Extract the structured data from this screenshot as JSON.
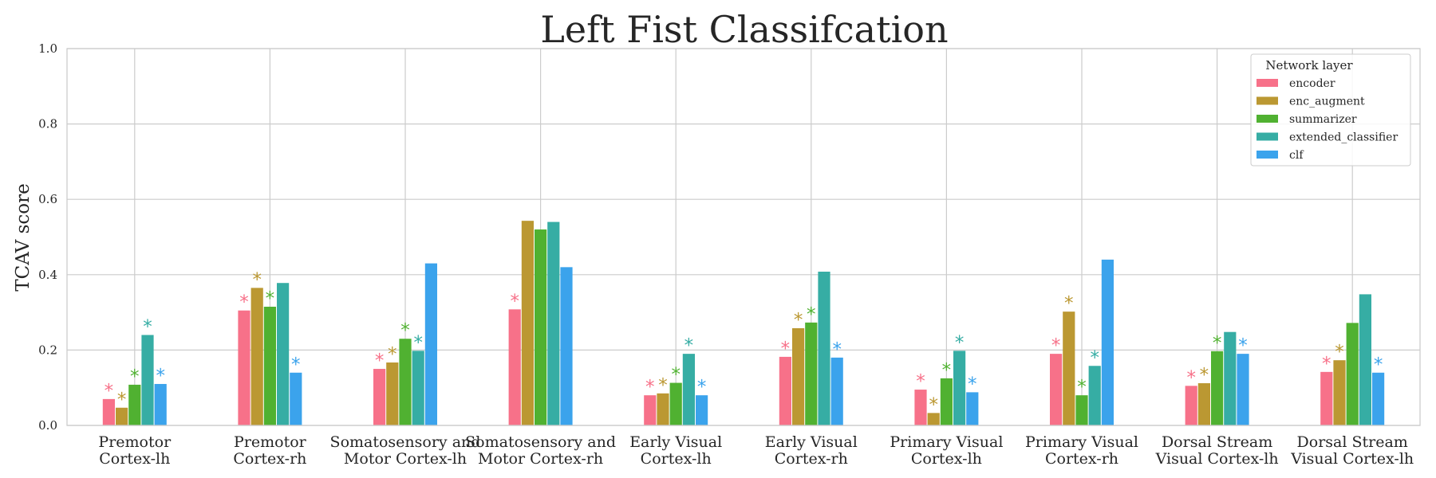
{
  "chart_data": {
    "type": "bar",
    "title": "Left Fist Classifcation",
    "xlabel": "",
    "ylabel": "TCAV score",
    "ylim": [
      0,
      1.0
    ],
    "yticks": [
      "0.0",
      "0.2",
      "0.4",
      "0.6",
      "0.8",
      "1.0"
    ],
    "grid": true,
    "legend": {
      "title": "Network layer",
      "placement": "top-right"
    },
    "categories": [
      [
        "Premotor",
        "Cortex-lh"
      ],
      [
        "Premotor",
        "Cortex-rh"
      ],
      [
        "Somatosensory and",
        "Motor Cortex-lh"
      ],
      [
        "Somatosensory and",
        "Motor Cortex-rh"
      ],
      [
        "Early Visual",
        "Cortex-lh"
      ],
      [
        "Early Visual",
        "Cortex-rh"
      ],
      [
        "Primary Visual",
        "Cortex-lh"
      ],
      [
        "Primary Visual",
        "Cortex-rh"
      ],
      [
        "Dorsal Stream",
        "Visual Cortex-lh"
      ],
      [
        "Dorsal Stream",
        "Visual Cortex-lh"
      ]
    ],
    "significance_marker": "*",
    "series": [
      {
        "name": "encoder",
        "color": "#f77189",
        "values": [
          0.07,
          0.305,
          0.15,
          0.308,
          0.08,
          0.182,
          0.095,
          0.19,
          0.105,
          0.142
        ],
        "significant": [
          true,
          true,
          true,
          true,
          true,
          true,
          true,
          true,
          true,
          true
        ]
      },
      {
        "name": "enc_augment",
        "color": "#bb9832",
        "values": [
          0.047,
          0.365,
          0.167,
          0.543,
          0.085,
          0.258,
          0.033,
          0.302,
          0.112,
          0.173
        ],
        "significant": [
          true,
          true,
          true,
          false,
          true,
          true,
          true,
          true,
          true,
          true
        ]
      },
      {
        "name": "summarizer",
        "color": "#50b131",
        "values": [
          0.108,
          0.315,
          0.23,
          0.52,
          0.113,
          0.273,
          0.125,
          0.08,
          0.197,
          0.272
        ],
        "significant": [
          true,
          true,
          true,
          false,
          true,
          true,
          true,
          true,
          true,
          false
        ]
      },
      {
        "name": "extended_classifier",
        "color": "#36ada4",
        "values": [
          0.24,
          0.378,
          0.198,
          0.54,
          0.19,
          0.408,
          0.198,
          0.158,
          0.248,
          0.348
        ],
        "significant": [
          true,
          false,
          true,
          false,
          true,
          false,
          true,
          true,
          false,
          false
        ]
      },
      {
        "name": "clf",
        "color": "#3ba3ec",
        "values": [
          0.11,
          0.14,
          0.43,
          0.42,
          0.08,
          0.18,
          0.088,
          0.44,
          0.19,
          0.14
        ],
        "significant": [
          true,
          true,
          false,
          false,
          true,
          true,
          true,
          false,
          true,
          true
        ]
      }
    ]
  }
}
